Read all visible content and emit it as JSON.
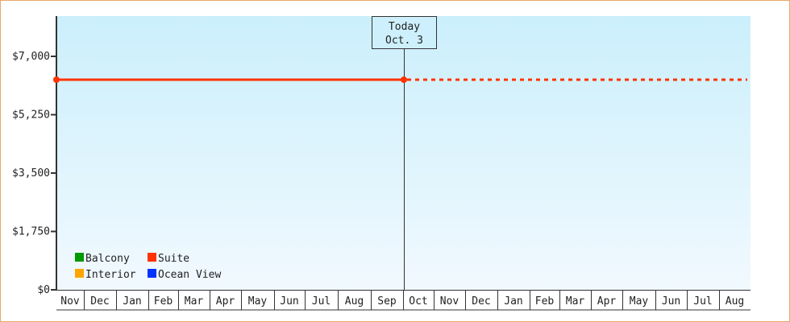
{
  "chart_data": {
    "type": "line",
    "title": "",
    "xlabel": "",
    "ylabel": "",
    "ylim": [
      0,
      8100
    ],
    "y_ticks": [
      "$0",
      "$1,750",
      "$3,500",
      "$5,250",
      "$7,000"
    ],
    "y_tick_values": [
      0,
      1750,
      3500,
      5250,
      7000
    ],
    "x_tick_labels": [
      "Nov",
      "Dec",
      "Jan",
      "Feb",
      "Mar",
      "Apr",
      "May",
      "Jun",
      "Jul",
      "Aug",
      "Sep",
      "Oct",
      "Nov",
      "Dec",
      "Jan",
      "Feb",
      "Mar",
      "Apr",
      "May",
      "Jun",
      "Jul",
      "Aug"
    ],
    "grid": false,
    "legend_placement": "bottom-left",
    "today_marker": {
      "line1": "Today",
      "line2": "Oct. 3"
    },
    "series": [
      {
        "name": "Balcony",
        "color": "#009900",
        "values": []
      },
      {
        "name": "Suite",
        "color": "#ff3300",
        "points": [
          {
            "x": "Nov",
            "y": 6300
          },
          {
            "x": "Oct. 3",
            "y": 6300
          }
        ],
        "projection": {
          "from": "Oct. 3",
          "to": "Aug",
          "y": 6300,
          "style": "dotted"
        }
      },
      {
        "name": "Interior",
        "color": "#ffa500",
        "values": []
      },
      {
        "name": "Ocean View",
        "color": "#0033ff",
        "values": []
      }
    ],
    "legend_order": [
      0,
      1,
      2,
      3
    ]
  }
}
